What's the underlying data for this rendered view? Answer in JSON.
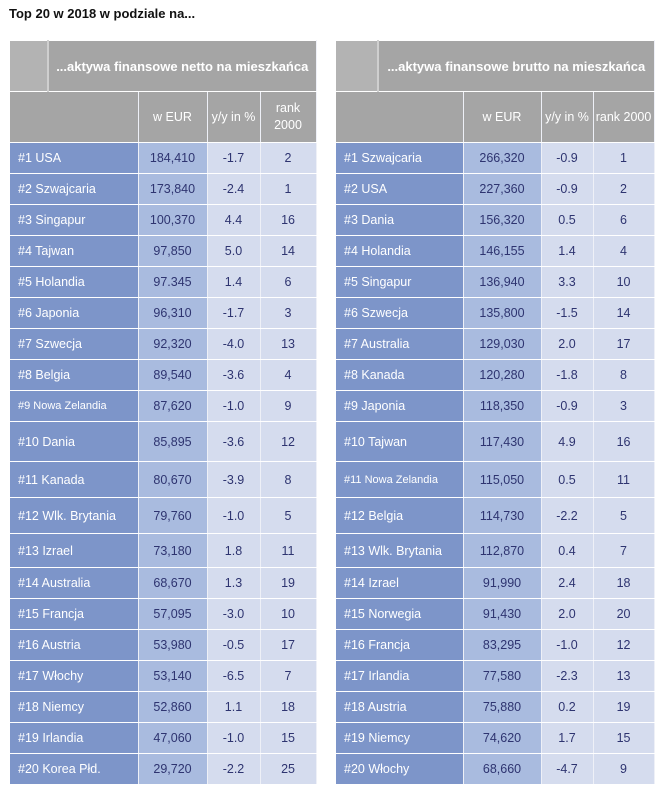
{
  "title": "Top 20 w 2018 w podziale na...",
  "colors": {
    "header": "#a5a5a5",
    "name_col": "#7d95c9",
    "value_col": "#a9bbdf",
    "other_col": "#d5dcee",
    "text": "#2e3470"
  },
  "tables": [
    {
      "heading": "...aktywa finansowe netto na mieszkańca",
      "columns": [
        "",
        "w EUR",
        "y/y in %",
        "rank 2000"
      ],
      "rows": [
        [
          "#1  USA",
          "184,410",
          "-1.7",
          "2"
        ],
        [
          "#2  Szwajcaria",
          "173,840",
          "-2.4",
          "1"
        ],
        [
          "#3  Singapur",
          "100,370",
          "4.4",
          "16"
        ],
        [
          "#4  Tajwan",
          "97,850",
          "5.0",
          "14"
        ],
        [
          "#5  Holandia",
          "97.345",
          "1.4",
          "6"
        ],
        [
          "#6  Japonia",
          "96,310",
          "-1.7",
          "3"
        ],
        [
          "#7  Szwecja",
          "92,320",
          "-4.0",
          "13"
        ],
        [
          "#8  Belgia",
          "89,540",
          "-3.6",
          "4"
        ],
        [
          "#9  Nowa Zelandia",
          "87,620",
          "-1.0",
          "9"
        ],
        [
          "#10 Dania",
          "85,895",
          "-3.6",
          "12"
        ],
        [
          "#11 Kanada",
          "80,670",
          "-3.9",
          "8"
        ],
        [
          "#12 Wlk. Brytania",
          "79,760",
          "-1.0",
          "5"
        ],
        [
          "#13 Izrael",
          "73,180",
          "1.8",
          "11"
        ],
        [
          "#14 Australia",
          "68,670",
          "1.3",
          "19"
        ],
        [
          "#15 Francja",
          "57,095",
          "-3.0",
          "10"
        ],
        [
          "#16 Austria",
          "53,980",
          "-0.5",
          "17"
        ],
        [
          "#17 Włochy",
          "53,140",
          "-6.5",
          "7"
        ],
        [
          "#18 Niemcy",
          "52,860",
          "1.1",
          "18"
        ],
        [
          "#19 Irlandia",
          "47,060",
          "-1.0",
          "15"
        ],
        [
          "#20 Korea Płd.",
          "29,720",
          "-2.2",
          "25"
        ]
      ]
    },
    {
      "heading": "...aktywa finansowe brutto na mieszkańca",
      "columns": [
        "",
        "w EUR",
        "y/y in %",
        "rank 2000"
      ],
      "rows": [
        [
          "#1  Szwajcaria",
          "266,320",
          "-0.9",
          "1"
        ],
        [
          "#2  USA",
          "227,360",
          "-0.9",
          "2"
        ],
        [
          "#3  Dania",
          "156,320",
          "0.5",
          "6"
        ],
        [
          "#4  Holandia",
          "146,155",
          "1.4",
          "4"
        ],
        [
          "#5  Singapur",
          "136,940",
          "3.3",
          "10"
        ],
        [
          "#6  Szwecja",
          "135,800",
          "-1.5",
          "14"
        ],
        [
          "#7  Australia",
          "129,030",
          "2.0",
          "17"
        ],
        [
          "#8  Kanada",
          "120,280",
          "-1.8",
          "8"
        ],
        [
          "#9  Japonia",
          "118,350",
          "-0.9",
          "3"
        ],
        [
          "#10 Tajwan",
          "117,430",
          "4.9",
          "16"
        ],
        [
          "#11 Nowa Zelandia",
          "115,050",
          "0.5",
          "11"
        ],
        [
          "#12 Belgia",
          "114,730",
          "-2.2",
          "5"
        ],
        [
          "#13 Wlk. Brytania",
          "112,870",
          "0.4",
          "7"
        ],
        [
          "#14 Izrael",
          "91,990",
          "2.4",
          "18"
        ],
        [
          "#15 Norwegia",
          "91,430",
          "2.0",
          "20"
        ],
        [
          "#16 Francja",
          "83,295",
          "-1.0",
          "12"
        ],
        [
          "#17 Irlandia",
          "77,580",
          "-2.3",
          "13"
        ],
        [
          "#18 Austria",
          "75,880",
          "0.2",
          "19"
        ],
        [
          "#19 Niemcy",
          "74,620",
          "1.7",
          "15"
        ],
        [
          "#20 Włochy",
          "68,660",
          "-4.7",
          "9"
        ]
      ]
    }
  ]
}
